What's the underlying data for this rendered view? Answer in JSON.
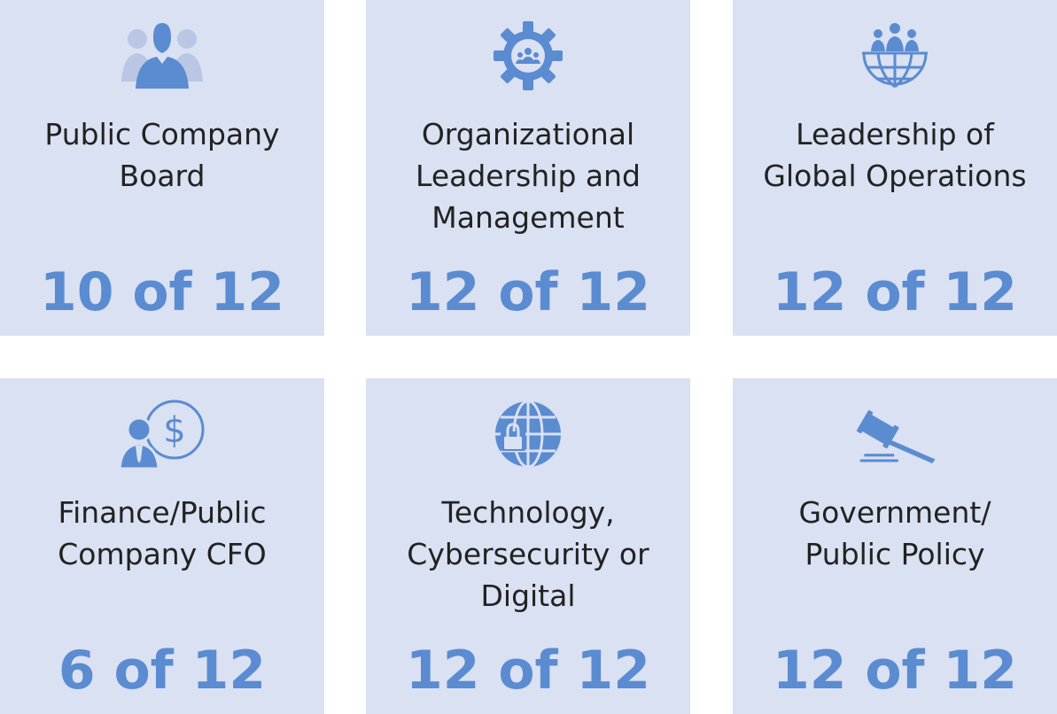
{
  "colors": {
    "card_background": "#d9e1f2",
    "accent": "#5b8bd0",
    "text": "#222222"
  },
  "cards": [
    {
      "icon": "board-people-icon",
      "label": "Public Company\nBoard",
      "value": "10 of 12"
    },
    {
      "icon": "gear-people-icon",
      "label": "Organizational\nLeadership and\nManagement",
      "value": "12 of 12"
    },
    {
      "icon": "globe-people-icon",
      "label": "Leadership of\nGlobal Operations",
      "value": "12 of 12"
    },
    {
      "icon": "person-dollar-icon",
      "label": "Finance/Public\nCompany CFO",
      "value": "6 of 12"
    },
    {
      "icon": "globe-lock-icon",
      "label": "Technology,\nCybersecurity or\nDigital",
      "value": "12 of 12"
    },
    {
      "icon": "gavel-icon",
      "label": "Government/\nPublic Policy",
      "value": "12 of 12"
    }
  ]
}
